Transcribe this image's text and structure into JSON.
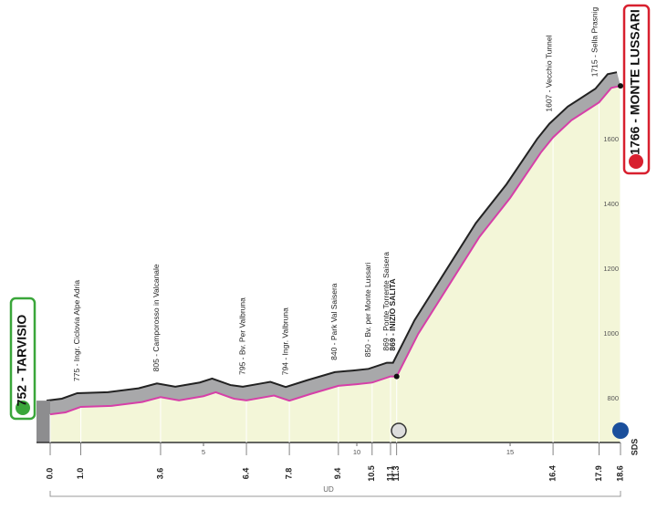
{
  "chart_data": {
    "type": "area",
    "start": "752 - TARVISIO",
    "finish": "1766 - MONTE LUSSARI",
    "region": "UD",
    "finish_tag": "SDS",
    "x": [
      0,
      0.5,
      1.0,
      2.0,
      3.0,
      3.6,
      4.2,
      5.0,
      5.4,
      6.0,
      6.4,
      7.0,
      7.3,
      7.8,
      8.5,
      9.4,
      10.0,
      10.5,
      11.1,
      11.3,
      12.0,
      13.0,
      14.0,
      15.0,
      16.0,
      16.4,
      17.0,
      17.9,
      18.3,
      18.6
    ],
    "series": [
      {
        "color": "#d63fa8",
        "values": [
          752,
          758,
          775,
          778,
          790,
          805,
          795,
          808,
          820,
          800,
          795,
          805,
          810,
          794,
          815,
          840,
          845,
          850,
          869,
          869,
          1000,
          1150,
          1300,
          1420,
          1560,
          1607,
          1660,
          1715,
          1760,
          1766
        ]
      }
    ],
    "fill": "#f3f6d8",
    "band_color": "#a8a8aa",
    "xlim": [
      0,
      18.6
    ],
    "ylim": [
      665,
      1820
    ],
    "yticks": [
      800,
      1000,
      1200,
      1400,
      1600
    ],
    "xticks": [
      5,
      10,
      15
    ],
    "distance_labels": [
      {
        "value": 0,
        "label": "0.0"
      },
      {
        "value": 1,
        "label": "1.0"
      },
      3.6,
      6.4,
      7.8,
      9.4,
      10.5,
      11.1,
      11.3,
      16.4,
      17.9,
      18.6
    ],
    "annotations": [
      {
        "x": 1.0,
        "text": "775 - Ingr. Ciclovia Alpe Adria",
        "bold": false
      },
      {
        "x": 3.6,
        "text": "805 - Camporosso in Valcanale",
        "bold": false
      },
      {
        "x": 6.4,
        "text": "795 - Bv. Per Valbruna",
        "bold": false
      },
      {
        "x": 7.8,
        "text": "794 - Ingr. Valbruna",
        "bold": false
      },
      {
        "x": 9.4,
        "text": "840 - Park Val Saisera",
        "bold": false
      },
      {
        "x": 10.5,
        "text": "850 - Bv. per Monte Lussari",
        "bold": false
      },
      {
        "x": 11.1,
        "text": "869 - Ponte Torrente Saisera",
        "bold": false
      },
      {
        "x": 11.3,
        "text": "869 - INIZIO SALITA",
        "bold": true
      },
      {
        "x": 16.4,
        "text": "1607 - Vecchio Tunnel",
        "bold": false
      },
      {
        "x": 17.9,
        "text": "1715 - Sella Prasnig",
        "bold": false
      }
    ]
  }
}
